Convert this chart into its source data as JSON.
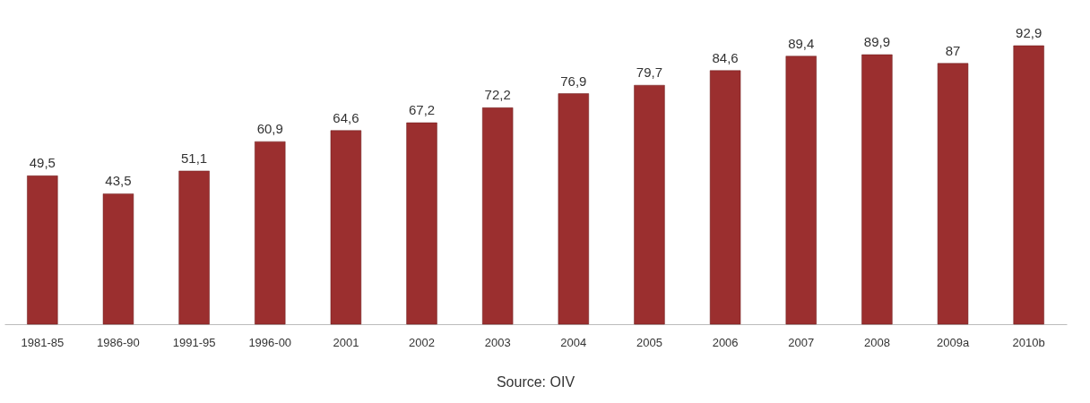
{
  "chart_data": {
    "type": "bar",
    "categories": [
      "1981-85",
      "1986-90",
      "1991-95",
      "1996-00",
      "2001",
      "2002",
      "2003",
      "2004",
      "2005",
      "2006",
      "2007",
      "2008",
      "2009a",
      "2010b"
    ],
    "values": [
      49.5,
      43.5,
      51.1,
      60.9,
      64.6,
      67.2,
      72.2,
      76.9,
      79.7,
      84.6,
      89.4,
      89.9,
      87,
      92.9
    ],
    "value_labels": [
      "49,5",
      "43,5",
      "51,1",
      "60,9",
      "64,6",
      "67,2",
      "72,2",
      "76,9",
      "79,7",
      "84,6",
      "89,4",
      "89,9",
      "87",
      "92,9"
    ],
    "color": "#9b2f2f",
    "annotations": [
      "Source: OIV"
    ],
    "grid": false
  }
}
